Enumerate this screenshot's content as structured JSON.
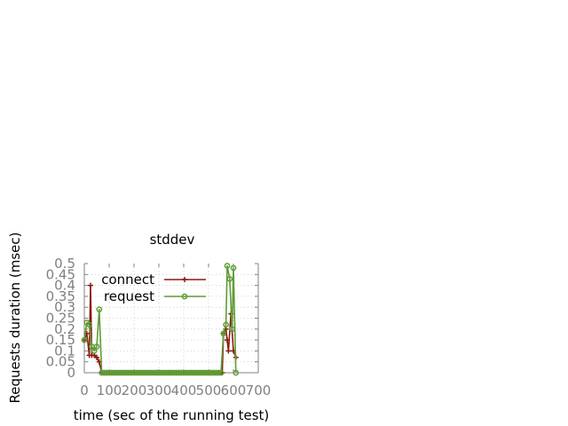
{
  "chart_data": {
    "type": "line",
    "title": "stddev",
    "xlabel": "time (sec of the running test)",
    "ylabel": "Requests duration (msec)",
    "xlim": [
      0,
      700
    ],
    "ylim": [
      0,
      0.5
    ],
    "x_ticks": [
      "0",
      "100",
      "200",
      "300",
      "400",
      "500",
      "600",
      "700"
    ],
    "y_ticks": [
      "0",
      "0.05",
      "0.1",
      "0.15",
      "0.2",
      "0.25",
      "0.3",
      "0.35",
      "0.4",
      "0.45",
      "0.5"
    ],
    "grid": true,
    "legend": "top-left",
    "series": [
      {
        "name": "connect",
        "color": "#8b1a0e",
        "marker": "plus",
        "points": [
          [
            0,
            0.15
          ],
          [
            10,
            0.18
          ],
          [
            20,
            0.08
          ],
          [
            25,
            0.4
          ],
          [
            30,
            0.08
          ],
          [
            40,
            0.08
          ],
          [
            50,
            0.07
          ],
          [
            60,
            0.05
          ],
          [
            70,
            0
          ],
          [
            80,
            0
          ],
          [
            90,
            0
          ],
          [
            100,
            0
          ],
          [
            110,
            0
          ],
          [
            120,
            0
          ],
          [
            130,
            0
          ],
          [
            140,
            0
          ],
          [
            150,
            0
          ],
          [
            160,
            0
          ],
          [
            170,
            0
          ],
          [
            180,
            0
          ],
          [
            190,
            0
          ],
          [
            200,
            0
          ],
          [
            210,
            0
          ],
          [
            220,
            0
          ],
          [
            230,
            0
          ],
          [
            240,
            0
          ],
          [
            250,
            0
          ],
          [
            260,
            0
          ],
          [
            270,
            0
          ],
          [
            280,
            0
          ],
          [
            290,
            0
          ],
          [
            300,
            0
          ],
          [
            310,
            0
          ],
          [
            320,
            0
          ],
          [
            330,
            0
          ],
          [
            340,
            0
          ],
          [
            350,
            0
          ],
          [
            360,
            0
          ],
          [
            370,
            0
          ],
          [
            380,
            0
          ],
          [
            390,
            0
          ],
          [
            400,
            0
          ],
          [
            410,
            0
          ],
          [
            420,
            0
          ],
          [
            430,
            0
          ],
          [
            440,
            0
          ],
          [
            450,
            0
          ],
          [
            460,
            0
          ],
          [
            470,
            0
          ],
          [
            480,
            0
          ],
          [
            490,
            0
          ],
          [
            500,
            0
          ],
          [
            510,
            0
          ],
          [
            520,
            0
          ],
          [
            530,
            0
          ],
          [
            540,
            0
          ],
          [
            550,
            0
          ],
          [
            555,
            0
          ],
          [
            560,
            0.18
          ],
          [
            570,
            0.2
          ],
          [
            575,
            0.15
          ],
          [
            580,
            0.1
          ],
          [
            590,
            0.27
          ],
          [
            600,
            0.1
          ],
          [
            610,
            0.07
          ]
        ]
      },
      {
        "name": "request",
        "color": "#5e9c36",
        "marker": "circle",
        "points": [
          [
            0,
            0.15
          ],
          [
            10,
            0.23
          ],
          [
            20,
            0.22
          ],
          [
            30,
            0.12
          ],
          [
            40,
            0.1
          ],
          [
            50,
            0.12
          ],
          [
            60,
            0.29
          ],
          [
            70,
            0
          ],
          [
            80,
            0
          ],
          [
            90,
            0
          ],
          [
            100,
            0
          ],
          [
            110,
            0
          ],
          [
            120,
            0
          ],
          [
            130,
            0
          ],
          [
            140,
            0
          ],
          [
            150,
            0
          ],
          [
            160,
            0
          ],
          [
            170,
            0
          ],
          [
            180,
            0
          ],
          [
            190,
            0
          ],
          [
            200,
            0
          ],
          [
            210,
            0
          ],
          [
            220,
            0
          ],
          [
            230,
            0
          ],
          [
            240,
            0
          ],
          [
            250,
            0
          ],
          [
            260,
            0
          ],
          [
            270,
            0
          ],
          [
            280,
            0
          ],
          [
            290,
            0
          ],
          [
            300,
            0
          ],
          [
            310,
            0
          ],
          [
            320,
            0
          ],
          [
            330,
            0
          ],
          [
            340,
            0
          ],
          [
            350,
            0
          ],
          [
            360,
            0
          ],
          [
            370,
            0
          ],
          [
            380,
            0
          ],
          [
            390,
            0
          ],
          [
            400,
            0
          ],
          [
            410,
            0
          ],
          [
            420,
            0
          ],
          [
            430,
            0
          ],
          [
            440,
            0
          ],
          [
            450,
            0
          ],
          [
            460,
            0
          ],
          [
            470,
            0
          ],
          [
            480,
            0
          ],
          [
            490,
            0
          ],
          [
            500,
            0
          ],
          [
            510,
            0
          ],
          [
            520,
            0
          ],
          [
            530,
            0
          ],
          [
            540,
            0
          ],
          [
            550,
            0
          ],
          [
            560,
            0.18
          ],
          [
            570,
            0.22
          ],
          [
            575,
            0.49
          ],
          [
            585,
            0.43
          ],
          [
            595,
            0.2
          ],
          [
            600,
            0.48
          ],
          [
            610,
            0
          ]
        ]
      }
    ]
  }
}
